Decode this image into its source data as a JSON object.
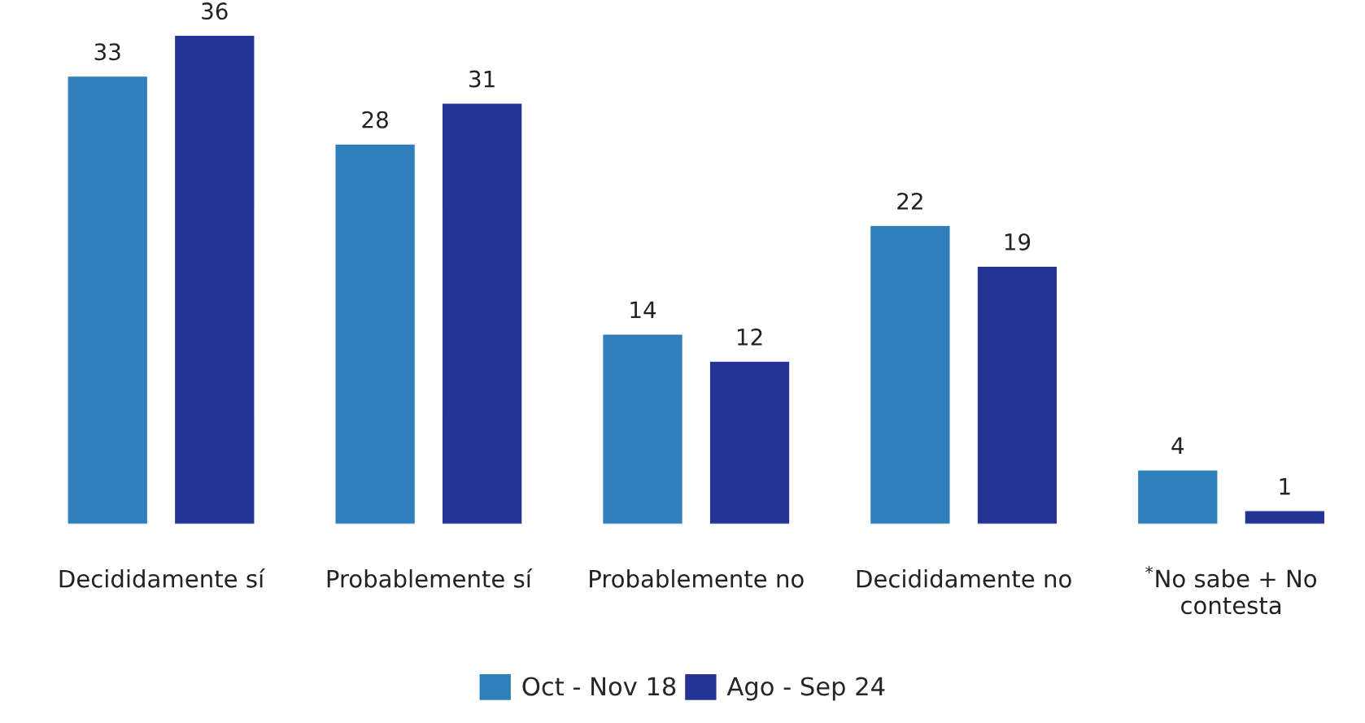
{
  "chart_data": {
    "type": "bar",
    "categories": [
      "Decididamente sí",
      "Probablemente sí",
      "Probablemente no",
      "Decididamente no",
      "$^{*}$No sabe + No contesta"
    ],
    "series": [
      {
        "name": "Oct - Nov 18",
        "color": "#2e7fba",
        "values": [
          33,
          28,
          14,
          22,
          4
        ]
      },
      {
        "name": "Ago - Sep 24",
        "color": "#253494",
        "values": [
          36,
          31,
          12,
          19,
          1
        ]
      }
    ],
    "data_labels": true,
    "legend": "bottom",
    "grid": false
  }
}
